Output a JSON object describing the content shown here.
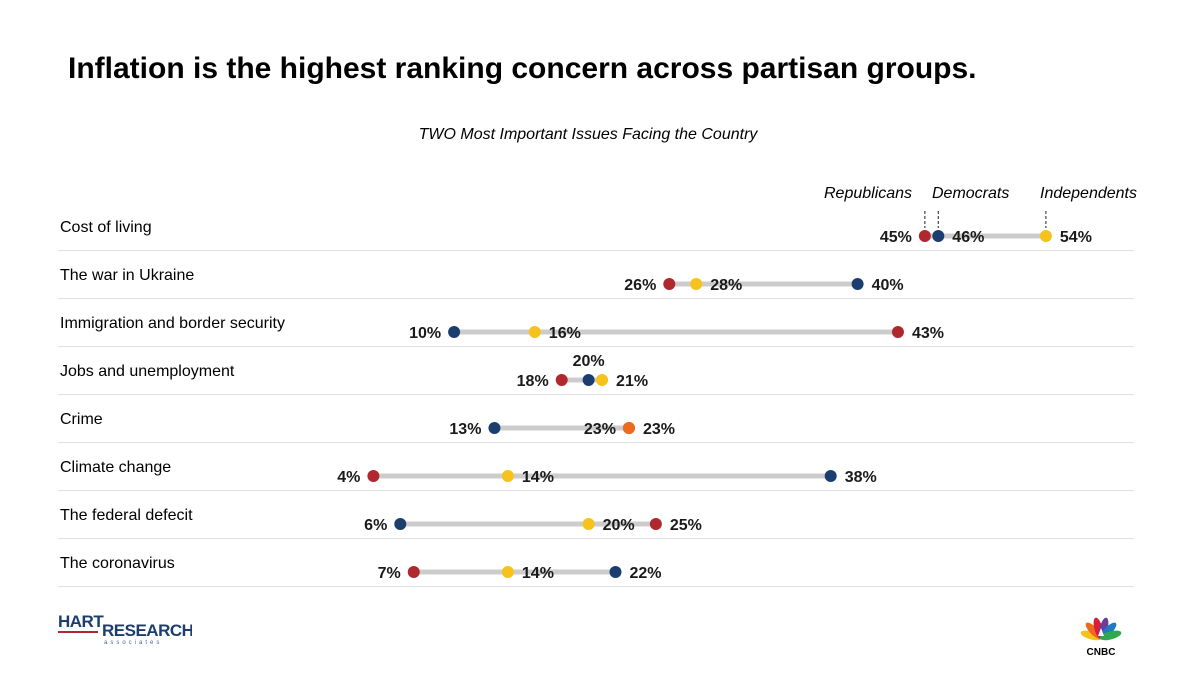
{
  "title": "Inflation is the highest ranking concern across partisan groups.",
  "subtitle": "TWO Most Important Issues Facing the Country",
  "colors": {
    "republicans": "#b0282d",
    "democrats": "#1c3e6e",
    "independents": "#f6c21b",
    "overlap": "#ee6a1c",
    "connector": "#cccccc"
  },
  "legend": {
    "republicans": "Republicans",
    "democrats": "Democrats",
    "independents": "Independents"
  },
  "chart_data": {
    "type": "dot-plot",
    "title": "Inflation is the highest ranking concern across partisan groups.",
    "subtitle": "TWO Most Important Issues Facing the Country",
    "unit": "%",
    "series": [
      {
        "name": "Republicans",
        "color": "#b0282d",
        "values": [
          45,
          26,
          43,
          18,
          23,
          4,
          25,
          7
        ]
      },
      {
        "name": "Democrats",
        "color": "#1c3e6e",
        "values": [
          46,
          40,
          10,
          20,
          13,
          38,
          6,
          22
        ]
      },
      {
        "name": "Independents",
        "color": "#f6c21b",
        "values": [
          54,
          28,
          16,
          21,
          23,
          14,
          20,
          14
        ]
      }
    ],
    "categories": [
      "Cost of living",
      "The war in Ukraine",
      "Immigration and border security",
      "Jobs and unemployment",
      "Crime",
      "Climate change",
      "The federal defecit",
      "The coronavirus"
    ],
    "rows": [
      {
        "category": "Cost of living",
        "points": [
          {
            "series": "Republicans",
            "value": 45,
            "label": "45%"
          },
          {
            "series": "Democrats",
            "value": 46,
            "label": "46%"
          },
          {
            "series": "Independents",
            "value": 54,
            "label": "54%"
          }
        ]
      },
      {
        "category": "The war in Ukraine",
        "points": [
          {
            "series": "Republicans",
            "value": 26,
            "label": "26%"
          },
          {
            "series": "Independents",
            "value": 28,
            "label": "28%"
          },
          {
            "series": "Democrats",
            "value": 40,
            "label": "40%"
          }
        ]
      },
      {
        "category": "Immigration and border security",
        "points": [
          {
            "series": "Democrats",
            "value": 10,
            "label": "10%"
          },
          {
            "series": "Independents",
            "value": 16,
            "label": "16%"
          },
          {
            "series": "Republicans",
            "value": 43,
            "label": "43%"
          }
        ]
      },
      {
        "category": "Jobs and unemployment",
        "points": [
          {
            "series": "Republicans",
            "value": 18,
            "label": "18%"
          },
          {
            "series": "Democrats",
            "value": 20,
            "label": "20%"
          },
          {
            "series": "Independents",
            "value": 21,
            "label": "21%"
          }
        ]
      },
      {
        "category": "Crime",
        "points": [
          {
            "series": "Democrats",
            "value": 13,
            "label": "13%"
          },
          {
            "series": "Republicans",
            "value": 23,
            "label": "23%"
          },
          {
            "series": "Independents",
            "value": 23,
            "label": "23%"
          }
        ]
      },
      {
        "category": "Climate change",
        "points": [
          {
            "series": "Republicans",
            "value": 4,
            "label": "4%"
          },
          {
            "series": "Independents",
            "value": 14,
            "label": "14%"
          },
          {
            "series": "Democrats",
            "value": 38,
            "label": "38%"
          }
        ]
      },
      {
        "category": "The federal defecit",
        "points": [
          {
            "series": "Democrats",
            "value": 6,
            "label": "6%"
          },
          {
            "series": "Independents",
            "value": 20,
            "label": "20%"
          },
          {
            "series": "Republicans",
            "value": 25,
            "label": "25%"
          }
        ]
      },
      {
        "category": "The coronavirus",
        "points": [
          {
            "series": "Republicans",
            "value": 7,
            "label": "7%"
          },
          {
            "series": "Independents",
            "value": 14,
            "label": "14%"
          },
          {
            "series": "Democrats",
            "value": 22,
            "label": "22%"
          }
        ]
      }
    ],
    "grid": false,
    "legend_position": "top-right"
  },
  "logos": {
    "hart": {
      "word1": "HART",
      "word2": "RESEARCH",
      "tagline": "associates"
    },
    "cnbc": {
      "text": "CNBC"
    }
  }
}
